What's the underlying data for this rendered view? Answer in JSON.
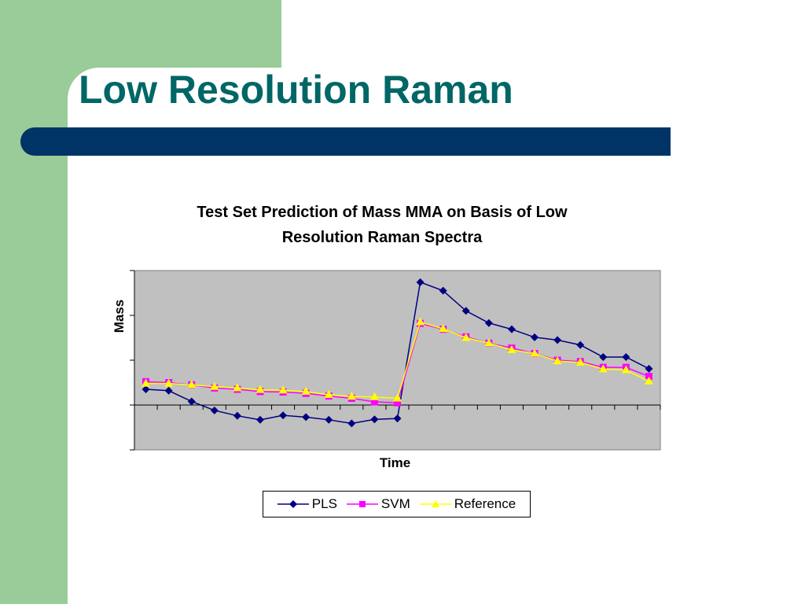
{
  "slide": {
    "title": "Low Resolution Raman",
    "colors": {
      "side_panel": "#99cc99",
      "title": "#006666",
      "accent_bar": "#003366"
    }
  },
  "chart_data": {
    "type": "line",
    "title_lines": [
      "Test Set Prediction of Mass MMA on Basis of Low",
      "Resolution Raman Spectra"
    ],
    "xlabel": "Time",
    "ylabel": "Mass",
    "x": [
      1,
      2,
      3,
      4,
      5,
      6,
      7,
      8,
      9,
      10,
      11,
      12,
      13,
      14,
      15,
      16,
      17,
      18,
      19,
      20,
      21,
      22,
      23
    ],
    "xlim": [
      0.5,
      23.5
    ],
    "ylim": [
      -1,
      3
    ],
    "y_ticks": [
      -1,
      0,
      1,
      2,
      3
    ],
    "tick_labels_shown": false,
    "plot_background": "#c0c0c0",
    "grid": false,
    "legend_position": "bottom",
    "series": [
      {
        "name": "PLS",
        "color": "#000080",
        "marker": "diamond",
        "values": [
          0.35,
          0.32,
          0.08,
          -0.12,
          -0.24,
          -0.33,
          -0.23,
          -0.27,
          -0.33,
          -0.41,
          -0.32,
          -0.3,
          2.74,
          2.55,
          2.1,
          1.83,
          1.69,
          1.51,
          1.45,
          1.34,
          1.07,
          1.07,
          0.81
        ]
      },
      {
        "name": "SVM",
        "color": "#ff00ff",
        "marker": "square",
        "values": [
          0.52,
          0.5,
          0.45,
          0.38,
          0.35,
          0.3,
          0.29,
          0.26,
          0.2,
          0.15,
          0.07,
          0.05,
          1.82,
          1.69,
          1.52,
          1.38,
          1.27,
          1.15,
          1.0,
          0.97,
          0.84,
          0.84,
          0.64
        ]
      },
      {
        "name": "Reference",
        "color": "#ffff00",
        "marker": "triangle",
        "values": [
          0.48,
          0.48,
          0.45,
          0.41,
          0.38,
          0.34,
          0.33,
          0.3,
          0.23,
          0.19,
          0.18,
          0.15,
          1.85,
          1.7,
          1.5,
          1.38,
          1.23,
          1.15,
          0.98,
          0.95,
          0.8,
          0.78,
          0.53
        ]
      }
    ]
  }
}
